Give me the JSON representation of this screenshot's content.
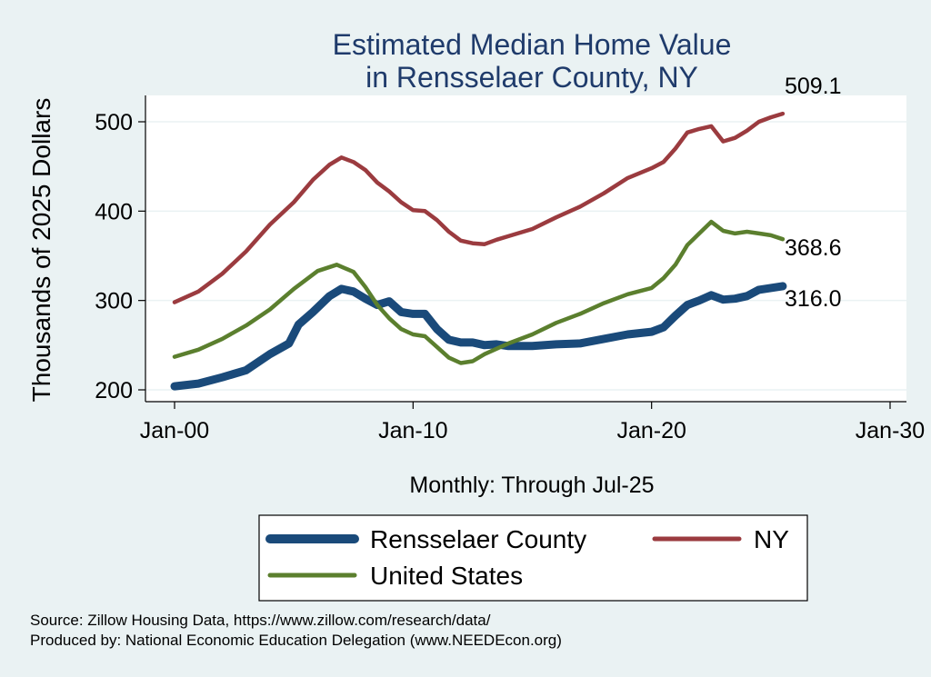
{
  "chart_data": {
    "type": "line",
    "title": [
      "Estimated Median Home Value",
      "in Rensselaer County, NY"
    ],
    "ylabel": "Thousands of 2025 Dollars",
    "xlabel": "Monthly: Through Jul-25",
    "x_ticks": [
      {
        "label": "Jan-00",
        "value": 2000.0
      },
      {
        "label": "Jan-10",
        "value": 2010.0
      },
      {
        "label": "Jan-20",
        "value": 2020.0
      },
      {
        "label": "Jan-30",
        "value": 2030.0
      }
    ],
    "y_ticks": [
      200,
      300,
      400,
      500
    ],
    "xlim": [
      2000.0,
      2030.0
    ],
    "ylim": [
      190,
      525
    ],
    "grid": "horizontal",
    "legend_position": "bottom",
    "series": [
      {
        "name": "Rensselaer County",
        "color": "#1a4a7a",
        "stroke": "thick",
        "end_label": "316.0",
        "points": [
          [
            2000.0,
            204
          ],
          [
            2001.0,
            207
          ],
          [
            2002.0,
            214
          ],
          [
            2003.0,
            222
          ],
          [
            2004.0,
            240
          ],
          [
            2004.8,
            252
          ],
          [
            2005.2,
            273
          ],
          [
            2005.8,
            287
          ],
          [
            2006.5,
            305
          ],
          [
            2007.0,
            313
          ],
          [
            2007.5,
            310
          ],
          [
            2008.0,
            302
          ],
          [
            2008.5,
            295
          ],
          [
            2009.0,
            299
          ],
          [
            2009.5,
            287
          ],
          [
            2010.0,
            285
          ],
          [
            2010.5,
            285
          ],
          [
            2011.0,
            268
          ],
          [
            2011.5,
            256
          ],
          [
            2012.0,
            253
          ],
          [
            2012.5,
            253
          ],
          [
            2013.0,
            250
          ],
          [
            2013.5,
            251
          ],
          [
            2014.0,
            249
          ],
          [
            2015.0,
            249
          ],
          [
            2016.0,
            251
          ],
          [
            2017.0,
            252
          ],
          [
            2018.0,
            257
          ],
          [
            2019.0,
            262
          ],
          [
            2020.0,
            265
          ],
          [
            2020.5,
            270
          ],
          [
            2021.0,
            283
          ],
          [
            2021.5,
            295
          ],
          [
            2022.0,
            300
          ],
          [
            2022.5,
            306
          ],
          [
            2023.0,
            301
          ],
          [
            2023.5,
            302
          ],
          [
            2024.0,
            305
          ],
          [
            2024.5,
            312
          ],
          [
            2025.0,
            314
          ],
          [
            2025.5,
            316.0
          ]
        ]
      },
      {
        "name": "NY",
        "color": "#9b3b3f",
        "stroke": "medium",
        "end_label": "509.1",
        "points": [
          [
            2000.0,
            298
          ],
          [
            2001.0,
            310
          ],
          [
            2002.0,
            330
          ],
          [
            2003.0,
            355
          ],
          [
            2004.0,
            385
          ],
          [
            2005.0,
            410
          ],
          [
            2005.8,
            435
          ],
          [
            2006.5,
            452
          ],
          [
            2007.0,
            460
          ],
          [
            2007.5,
            455
          ],
          [
            2008.0,
            446
          ],
          [
            2008.5,
            432
          ],
          [
            2009.0,
            422
          ],
          [
            2009.5,
            410
          ],
          [
            2010.0,
            401
          ],
          [
            2010.5,
            400
          ],
          [
            2011.0,
            390
          ],
          [
            2011.5,
            377
          ],
          [
            2012.0,
            367
          ],
          [
            2012.5,
            364
          ],
          [
            2013.0,
            363
          ],
          [
            2013.5,
            368
          ],
          [
            2014.0,
            372
          ],
          [
            2015.0,
            380
          ],
          [
            2016.0,
            393
          ],
          [
            2017.0,
            405
          ],
          [
            2018.0,
            420
          ],
          [
            2019.0,
            437
          ],
          [
            2020.0,
            448
          ],
          [
            2020.5,
            455
          ],
          [
            2021.0,
            470
          ],
          [
            2021.5,
            488
          ],
          [
            2022.0,
            492
          ],
          [
            2022.5,
            495
          ],
          [
            2023.0,
            478
          ],
          [
            2023.5,
            482
          ],
          [
            2024.0,
            490
          ],
          [
            2024.5,
            500
          ],
          [
            2025.0,
            505
          ],
          [
            2025.5,
            509.1
          ]
        ]
      },
      {
        "name": "United States",
        "color": "#5b7f2e",
        "stroke": "medium",
        "end_label": "368.6",
        "points": [
          [
            2000.0,
            237
          ],
          [
            2001.0,
            245
          ],
          [
            2002.0,
            257
          ],
          [
            2003.0,
            272
          ],
          [
            2004.0,
            290
          ],
          [
            2005.0,
            313
          ],
          [
            2006.0,
            333
          ],
          [
            2006.8,
            340
          ],
          [
            2007.5,
            332
          ],
          [
            2008.0,
            315
          ],
          [
            2008.5,
            295
          ],
          [
            2009.0,
            280
          ],
          [
            2009.5,
            268
          ],
          [
            2010.0,
            262
          ],
          [
            2010.5,
            260
          ],
          [
            2011.0,
            248
          ],
          [
            2011.5,
            236
          ],
          [
            2012.0,
            230
          ],
          [
            2012.5,
            232
          ],
          [
            2013.0,
            240
          ],
          [
            2014.0,
            252
          ],
          [
            2015.0,
            262
          ],
          [
            2016.0,
            275
          ],
          [
            2017.0,
            285
          ],
          [
            2018.0,
            297
          ],
          [
            2019.0,
            307
          ],
          [
            2020.0,
            314
          ],
          [
            2020.5,
            325
          ],
          [
            2021.0,
            340
          ],
          [
            2021.5,
            362
          ],
          [
            2022.0,
            375
          ],
          [
            2022.5,
            388
          ],
          [
            2023.0,
            378
          ],
          [
            2023.5,
            375
          ],
          [
            2024.0,
            377
          ],
          [
            2024.5,
            375
          ],
          [
            2025.0,
            373
          ],
          [
            2025.5,
            368.6
          ]
        ]
      }
    ]
  },
  "source": {
    "line1": "Source: Zillow Housing Data, https://www.zillow.com/research/data/",
    "line2": "Produced by: National Economic Education Delegation (www.NEEDEcon.org)"
  }
}
